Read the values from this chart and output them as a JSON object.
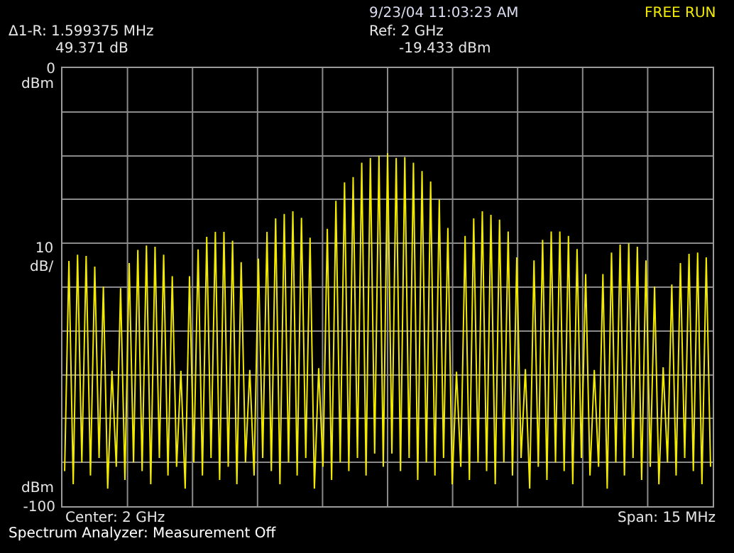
{
  "chart_data": {
    "type": "line",
    "ylim": [
      -100,
      0
    ],
    "yticks": [
      0,
      {
        "value": -10,
        "label": null
      },
      {
        "value": -20,
        "label": null
      },
      {
        "value": -30,
        "label": null
      },
      {
        "value": -40,
        "label": null
      },
      {
        "value": -50,
        "label": null
      },
      {
        "value": -60,
        "label": null
      },
      {
        "value": -70,
        "label": null
      },
      {
        "value": -80,
        "label": null
      },
      {
        "value": -90,
        "label": null
      },
      -100
    ],
    "grid": true,
    "marker": "none",
    "ylabel": "10\ndB/",
    "line_style": "solid",
    "categories": [
      null,
      null,
      null,
      null,
      null,
      null,
      null,
      null,
      null,
      null,
      null,
      null,
      null,
      null,
      null,
      null,
      null,
      null,
      null,
      null,
      null,
      null,
      null,
      null,
      null,
      null,
      null,
      null,
      null,
      null,
      null,
      null,
      null,
      null,
      null,
      null,
      null,
      null,
      null,
      null,
      null,
      null,
      null,
      null,
      null,
      null,
      null,
      null,
      null,
      null,
      null,
      null,
      null,
      null,
      null,
      null,
      null,
      null,
      null,
      null,
      null,
      null,
      null,
      null,
      null,
      null,
      null,
      null,
      null,
      null,
      null,
      null,
      null,
      null,
      null,
      null,
      null,
      null,
      null,
      null,
      null,
      null,
      null,
      null,
      null,
      null,
      null,
      null,
      null,
      null,
      null,
      null,
      null,
      null,
      null,
      null,
      null,
      null,
      null,
      null,
      null,
      null,
      null,
      null,
      null,
      null,
      null,
      null,
      null,
      null,
      null,
      null,
      null,
      null,
      null,
      null,
      null,
      null,
      null,
      null,
      null,
      null,
      null,
      null,
      null,
      null,
      null,
      null,
      null,
      null,
      null,
      null,
      null,
      null,
      null,
      null,
      null,
      null,
      null,
      null,
      null,
      null,
      null,
      null,
      null,
      null,
      null,
      null,
      null,
      null,
      null
    ],
    "series": [
      {
        "color": "#f2ea00",
        "values": [
          -92,
          -44.0,
          -95,
          -42.6,
          -90,
          -42.9,
          -93,
          -45.3,
          -89,
          -49.9,
          -96,
          -69.1,
          -91,
          -50.2,
          -94,
          -44.5,
          -90,
          -41.5,
          -92,
          -40.5,
          -95,
          -40.8,
          -89,
          -42.6,
          -93,
          -47.5,
          -91,
          -69.1,
          -96,
          -47.5,
          -90,
          -41.4,
          -93,
          -38.5,
          -89,
          -37.4,
          -94,
          -37.4,
          -91,
          -39.4,
          -95,
          -44.3,
          -90,
          -68.9,
          -93,
          -43.5,
          -89,
          -37.4,
          -92,
          -34.3,
          -95,
          -33.3,
          -90,
          -32.7,
          -93,
          -34.2,
          -89,
          -38.7,
          -96,
          -68.5,
          -91,
          -36.7,
          -94,
          -30.3,
          -90,
          -26.1,
          -92,
          -24.9,
          -89,
          -21.6,
          -93,
          -20.5,
          -88,
          -20.0,
          -91,
          -19.4,
          -88,
          -20.5,
          -92,
          -20.3,
          -89,
          -21.6,
          -94,
          -23.5,
          -90,
          -25.9,
          -93,
          -30.0,
          -89,
          -36.5,
          -95,
          -69.3,
          -91,
          -38.3,
          -94,
          -34.3,
          -90,
          -32.7,
          -92,
          -33.5,
          -95,
          -34.6,
          -90,
          -37.3,
          -93,
          -43.2,
          -89,
          -68.7,
          -96,
          -43.9,
          -91,
          -39.2,
          -94,
          -37.3,
          -90,
          -37.3,
          -92,
          -38.3,
          -95,
          -41.3,
          -89,
          -47.0,
          -93,
          -68.9,
          -91,
          -47.0,
          -96,
          -42.1,
          -90,
          -40.3,
          -93,
          -40.0,
          -89,
          -40.8,
          -94,
          -43.9,
          -91,
          -49.9,
          -95,
          -68.3,
          -90,
          -49.4,
          -93,
          -44.5,
          -89,
          -42.4,
          -92,
          -42.1,
          -95,
          -43.2,
          -91
        ]
      }
    ],
    "annotations": [
      "9/23/04 11:03:23 AM",
      "FREE RUN",
      "Δ1-R: 1.599375 MHz",
      "49.371 dB",
      "Ref: 2 GHz",
      "-19.433 dBm",
      "dBm",
      "dBm",
      "Center: 2 GHz",
      "Span: 15 MHz",
      "Spectrum Analyzer: Measurement Off"
    ]
  }
}
